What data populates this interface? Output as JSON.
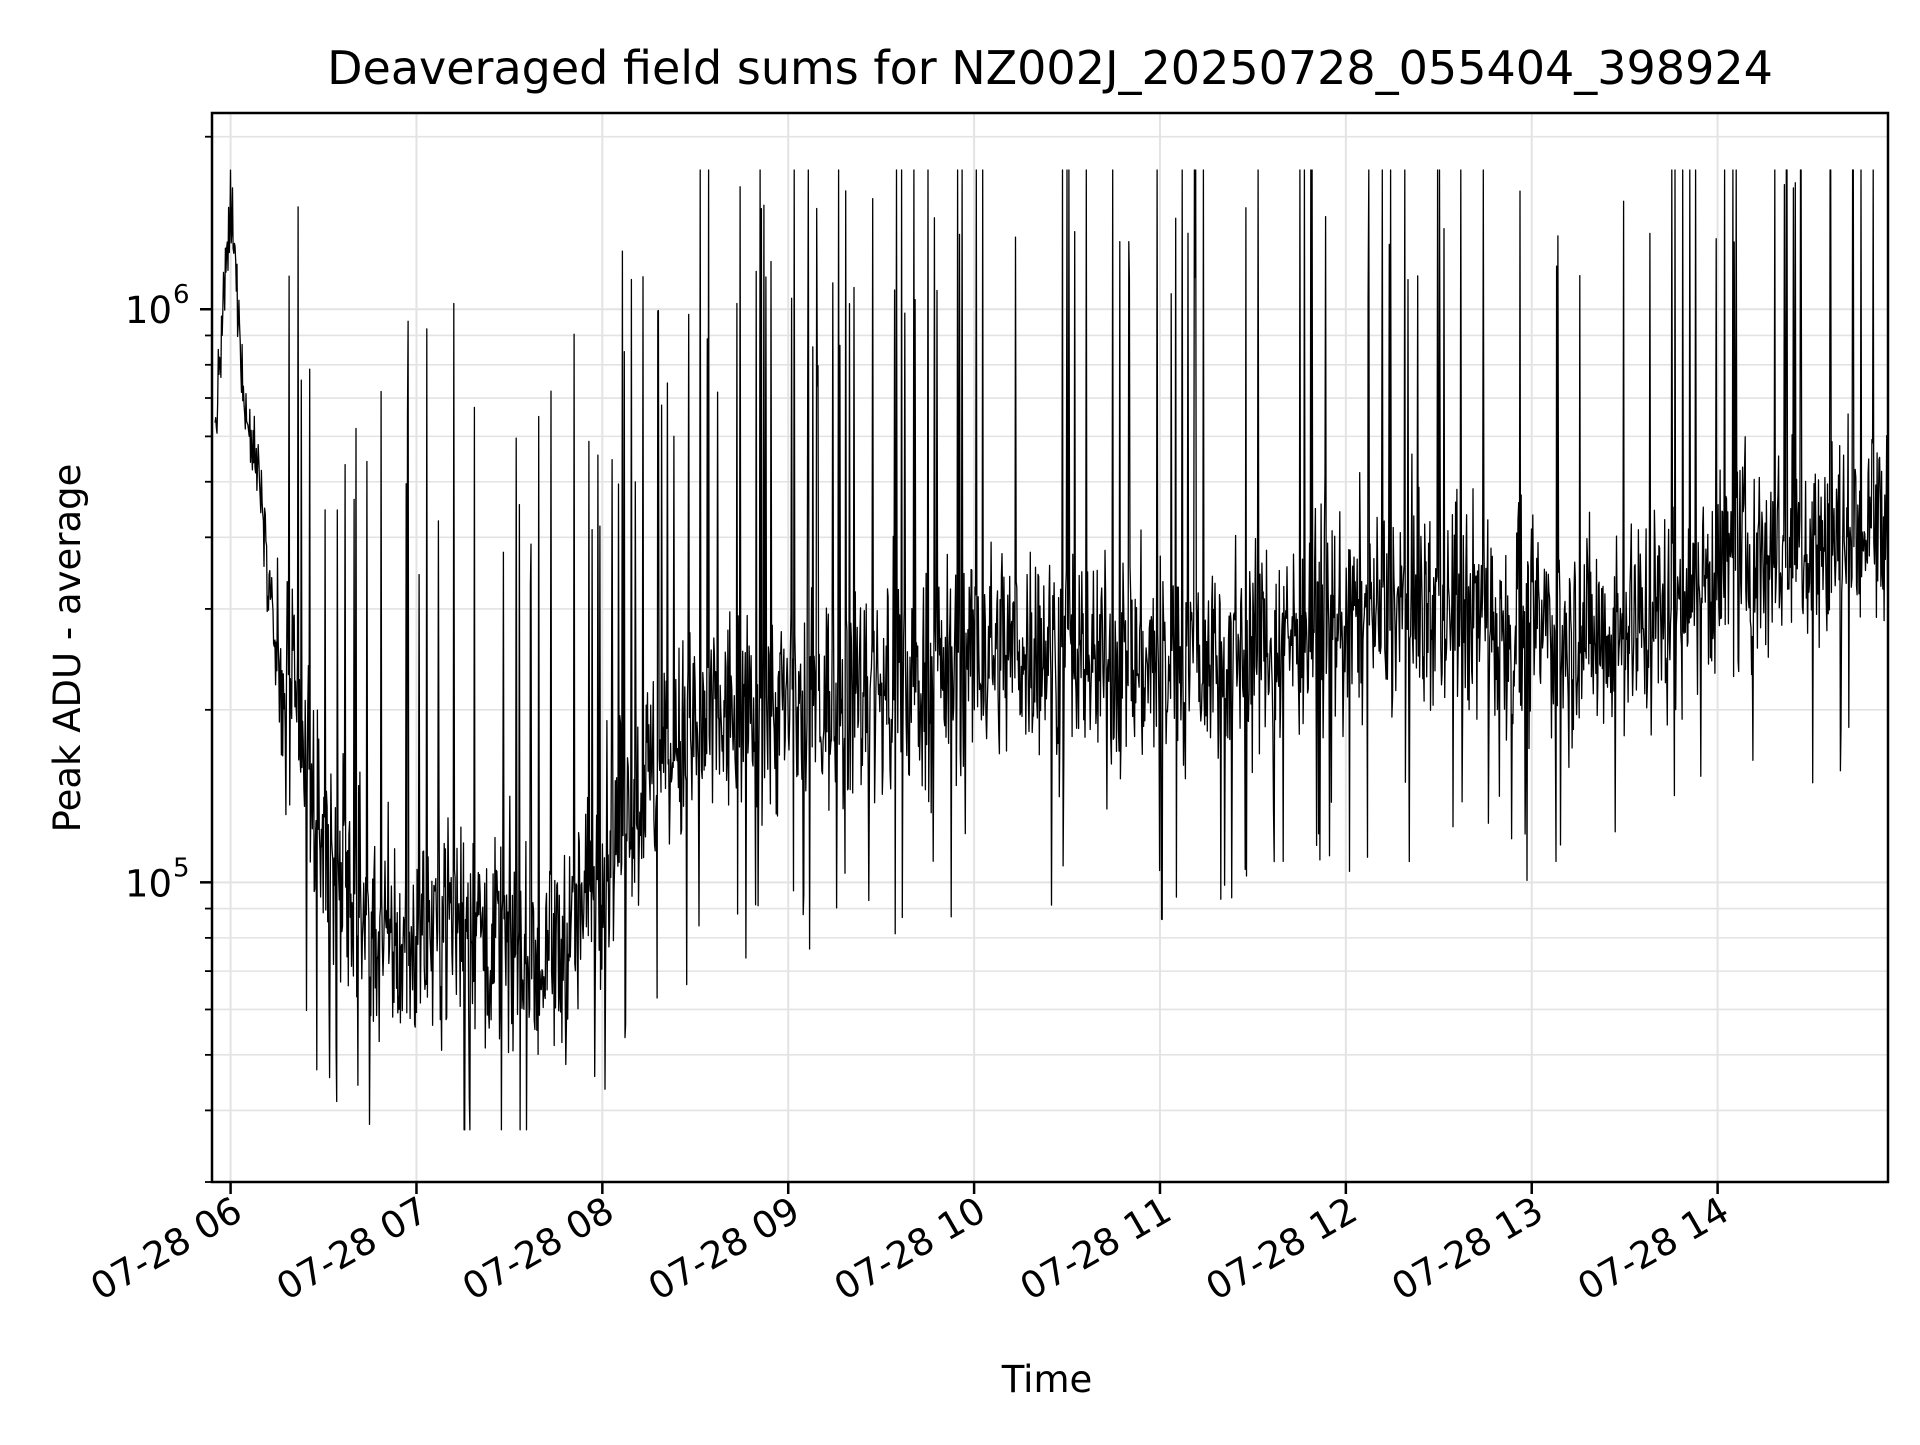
{
  "chart_data": {
    "type": "line",
    "title": "Deaveraged field sums for NZ002J_20250728_055404_398924",
    "xlabel": "Time",
    "ylabel": "Peak ADU - average",
    "xscale": "time",
    "yscale": "log",
    "xlim": [
      "2025-07-28 05:54",
      "2025-07-28 14:55"
    ],
    "ylim": [
      30000,
      2200000
    ],
    "grid": true,
    "line_color": "#000000",
    "x_ticks": [
      {
        "label": "07-28 06",
        "value": "2025-07-28 06:00"
      },
      {
        "label": "07-28 07",
        "value": "2025-07-28 07:00"
      },
      {
        "label": "07-28 08",
        "value": "2025-07-28 08:00"
      },
      {
        "label": "07-28 09",
        "value": "2025-07-28 09:00"
      },
      {
        "label": "07-28 10",
        "value": "2025-07-28 10:00"
      },
      {
        "label": "07-28 11",
        "value": "2025-07-28 11:00"
      },
      {
        "label": "07-28 12",
        "value": "2025-07-28 12:00"
      },
      {
        "label": "07-28 13",
        "value": "2025-07-28 13:00"
      },
      {
        "label": "07-28 14",
        "value": "2025-07-28 14:00"
      }
    ],
    "y_ticks": [
      {
        "base": "10",
        "exp": "5",
        "value": 100000
      },
      {
        "base": "10",
        "exp": "6",
        "value": 1000000
      }
    ],
    "series": [
      {
        "name": "",
        "x": [
          "2025-07-28 05:55",
          "2025-07-28 06:00",
          "2025-07-28 06:05",
          "2025-07-28 06:10",
          "2025-07-28 06:15",
          "2025-07-28 06:20",
          "2025-07-28 06:25",
          "2025-07-28 06:30",
          "2025-07-28 06:35",
          "2025-07-28 06:40",
          "2025-07-28 06:45",
          "2025-07-28 06:50",
          "2025-07-28 06:55",
          "2025-07-28 07:00",
          "2025-07-28 07:10",
          "2025-07-28 07:20",
          "2025-07-28 07:30",
          "2025-07-28 07:40",
          "2025-07-28 07:50",
          "2025-07-28 08:00",
          "2025-07-28 08:15",
          "2025-07-28 08:30",
          "2025-07-28 08:45",
          "2025-07-28 09:00",
          "2025-07-28 09:20",
          "2025-07-28 09:40",
          "2025-07-28 10:00",
          "2025-07-28 10:20",
          "2025-07-28 10:40",
          "2025-07-28 11:00",
          "2025-07-28 11:20",
          "2025-07-28 11:40",
          "2025-07-28 12:00",
          "2025-07-28 12:20",
          "2025-07-28 12:40",
          "2025-07-28 13:00",
          "2025-07-28 13:20",
          "2025-07-28 13:40",
          "2025-07-28 14:00",
          "2025-07-28 14:20",
          "2025-07-28 14:40",
          "2025-07-28 14:55"
        ],
        "values": [
          600000,
          1500000,
          650000,
          500000,
          230000,
          200000,
          150000,
          120000,
          100000,
          90000,
          85000,
          80000,
          75000,
          80000,
          90000,
          85000,
          75000,
          70000,
          80000,
          110000,
          150000,
          180000,
          200000,
          200000,
          210000,
          220000,
          250000,
          260000,
          240000,
          240000,
          250000,
          270000,
          290000,
          300000,
          300000,
          280000,
          270000,
          290000,
          350000,
          380000,
          400000,
          420000
        ]
      }
    ]
  }
}
